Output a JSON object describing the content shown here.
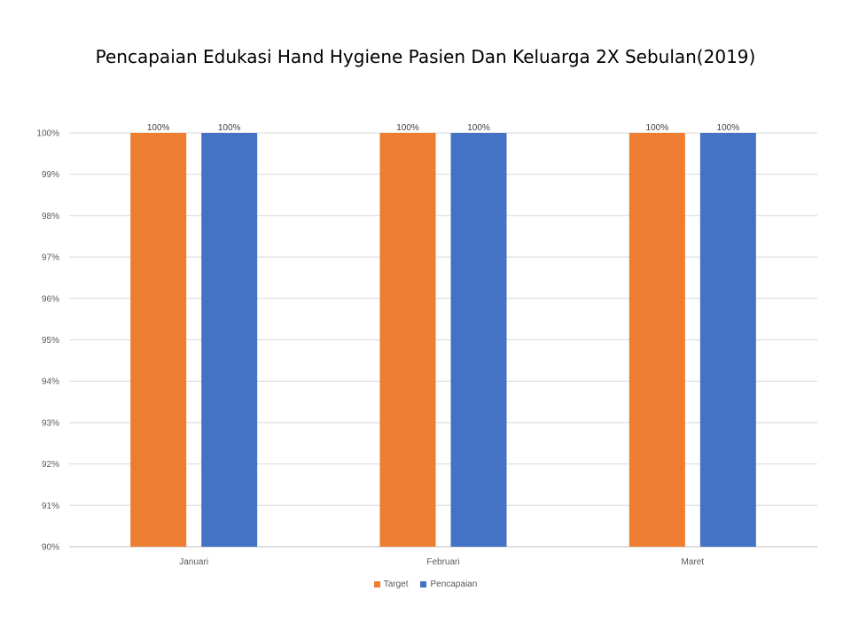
{
  "chart_data": {
    "type": "bar",
    "title": "Pencapaian Edukasi Hand Hygiene Pasien Dan Keluarga 2X Sebulan(2019)",
    "categories": [
      "Januari",
      "Februari",
      "Maret"
    ],
    "series": [
      {
        "name": "Target",
        "color": "#ED7D31",
        "values": [
          100,
          100,
          100
        ],
        "labels": [
          "100%",
          "100%",
          "100%"
        ]
      },
      {
        "name": "Pencapaian",
        "color": "#4472C4",
        "values": [
          100,
          100,
          100
        ],
        "labels": [
          "100%",
          "100%",
          "100%"
        ]
      }
    ],
    "ylim": [
      90,
      100
    ],
    "yticks": [
      "90%",
      "91%",
      "92%",
      "93%",
      "94%",
      "95%",
      "96%",
      "97%",
      "98%",
      "99%",
      "100%"
    ],
    "grid": true,
    "legend_position": "bottom"
  }
}
